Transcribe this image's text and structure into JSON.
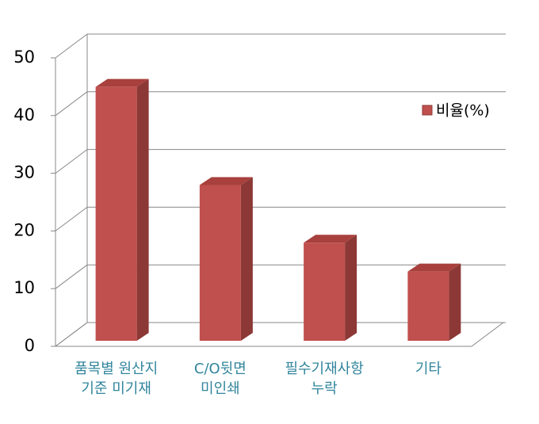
{
  "chart_data": {
    "type": "bar3d",
    "categories": [
      [
        "품목별 원산지",
        "기준 미기재"
      ],
      [
        "C/O뒷면",
        "미인쇄"
      ],
      [
        "필수기재사항",
        "누락"
      ],
      [
        "기타"
      ]
    ],
    "series": [
      {
        "name": "비율(%)",
        "color": "#c0504d",
        "values": [
          44,
          27,
          17,
          12
        ]
      }
    ],
    "ylim": [
      0,
      50
    ],
    "yticks": [
      0,
      10,
      20,
      30,
      40,
      50
    ],
    "grid": true,
    "legend": "right"
  }
}
